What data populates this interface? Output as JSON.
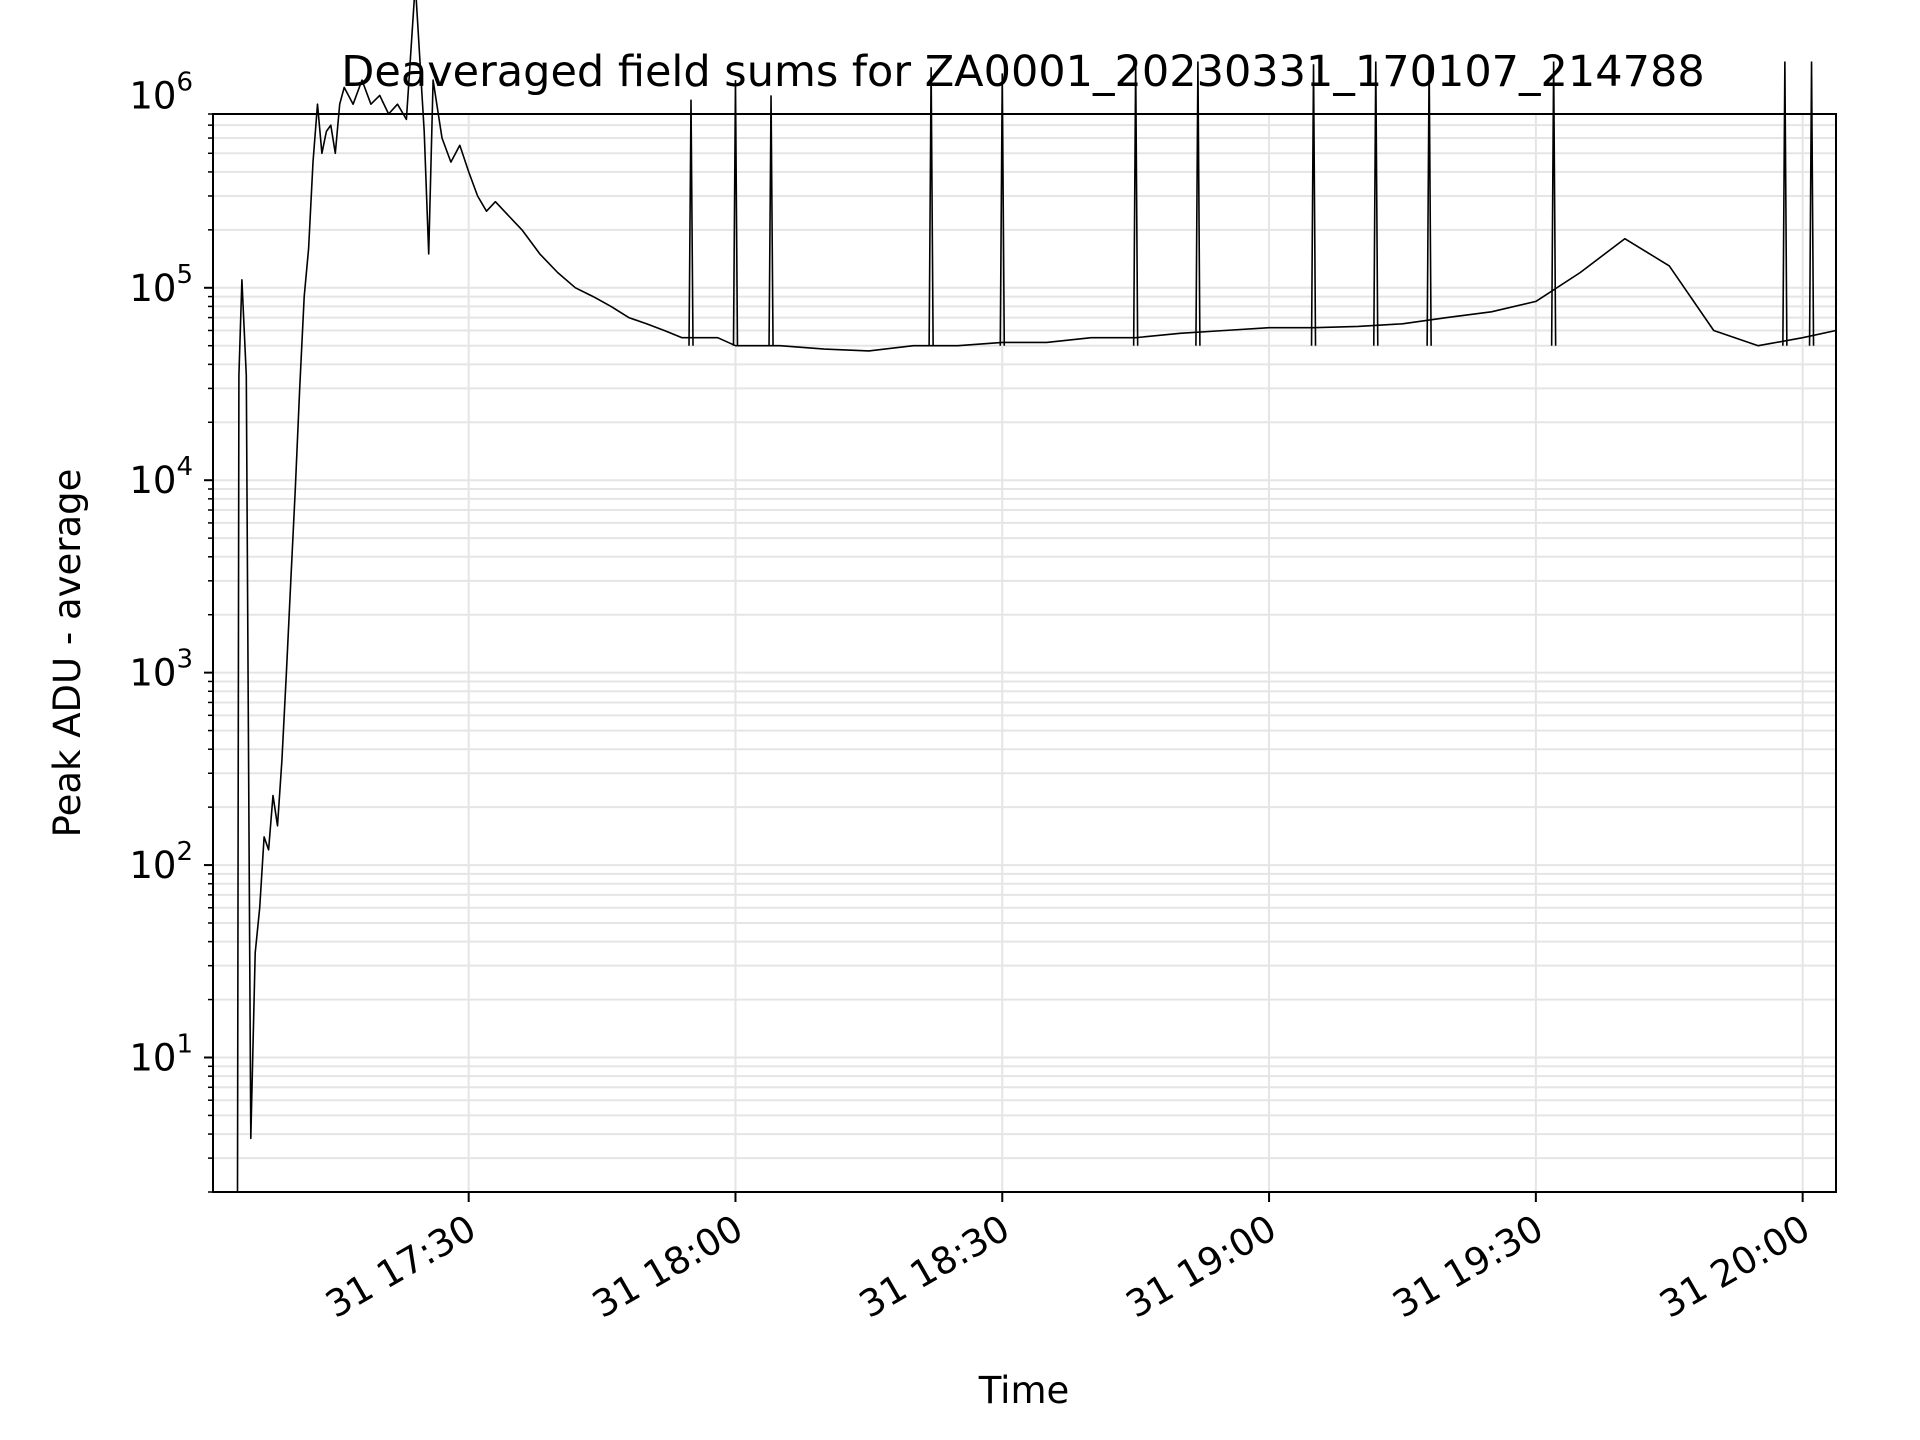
{
  "chart_data": {
    "type": "line",
    "title": "Deaveraged field sums for ZA0001_20230331_170107_214788",
    "xlabel": "Time",
    "ylabel": "Peak ADU - average",
    "yscale": "log",
    "ylim": [
      2,
      800000
    ],
    "xlim": [
      "2023-03-31 17:01:15",
      "2023-03-31 20:03:45"
    ],
    "x_ticks": [
      "31 17:30",
      "31 18:00",
      "31 18:30",
      "31 19:00",
      "31 19:30",
      "31 20:00"
    ],
    "y_ticks": [
      {
        "base": "10",
        "exp": "1"
      },
      {
        "base": "10",
        "exp": "2"
      },
      {
        "base": "10",
        "exp": "3"
      },
      {
        "base": "10",
        "exp": "4"
      },
      {
        "base": "10",
        "exp": "5"
      },
      {
        "base": "10",
        "exp": "6"
      }
    ],
    "grid": true,
    "line_color": "#000000",
    "grid_color": "#e5e5e5",
    "series": [
      {
        "x": [
          "2023-03-31 17:04:00",
          "2023-03-31 17:04:10",
          "2023-03-31 17:04:30",
          "2023-03-31 17:05:00",
          "2023-03-31 17:05:30",
          "2023-03-31 17:06:00",
          "2023-03-31 17:06:30",
          "2023-03-31 17:07:00",
          "2023-03-31 17:07:30",
          "2023-03-31 17:08:00",
          "2023-03-31 17:08:30",
          "2023-03-31 17:09:00",
          "2023-03-31 17:09:30",
          "2023-03-31 17:10:00",
          "2023-03-31 17:10:30",
          "2023-03-31 17:11:00",
          "2023-03-31 17:11:30",
          "2023-03-31 17:12:00",
          "2023-03-31 17:12:30",
          "2023-03-31 17:13:00",
          "2023-03-31 17:13:30",
          "2023-03-31 17:14:00",
          "2023-03-31 17:14:30",
          "2023-03-31 17:15:00",
          "2023-03-31 17:15:30",
          "2023-03-31 17:16:00",
          "2023-03-31 17:17:00",
          "2023-03-31 17:18:00",
          "2023-03-31 17:19:00",
          "2023-03-31 17:20:00",
          "2023-03-31 17:21:00",
          "2023-03-31 17:22:00",
          "2023-03-31 17:23:00",
          "2023-03-31 17:24:00",
          "2023-03-31 17:25:00",
          "2023-03-31 17:25:30",
          "2023-03-31 17:26:00",
          "2023-03-31 17:27:00",
          "2023-03-31 17:28:00",
          "2023-03-31 17:29:00",
          "2023-03-31 17:30:00",
          "2023-03-31 17:31:00",
          "2023-03-31 17:32:00",
          "2023-03-31 17:33:00",
          "2023-03-31 17:34:00",
          "2023-03-31 17:36:00",
          "2023-03-31 17:38:00",
          "2023-03-31 17:40:00",
          "2023-03-31 17:42:00",
          "2023-03-31 17:44:00",
          "2023-03-31 17:46:00",
          "2023-03-31 17:48:00",
          "2023-03-31 17:50:00",
          "2023-03-31 17:52:00",
          "2023-03-31 17:54:00",
          "2023-03-31 17:56:00",
          "2023-03-31 17:58:00",
          "2023-03-31 18:00:00",
          "2023-03-31 18:05:00",
          "2023-03-31 18:10:00",
          "2023-03-31 18:15:00",
          "2023-03-31 18:20:00",
          "2023-03-31 18:25:00",
          "2023-03-31 18:30:00",
          "2023-03-31 18:35:00",
          "2023-03-31 18:40:00",
          "2023-03-31 18:45:00",
          "2023-03-31 18:50:00",
          "2023-03-31 18:55:00",
          "2023-03-31 19:00:00",
          "2023-03-31 19:05:00",
          "2023-03-31 19:10:00",
          "2023-03-31 19:15:00",
          "2023-03-31 19:20:00",
          "2023-03-31 19:25:00",
          "2023-03-31 19:30:00",
          "2023-03-31 19:35:00",
          "2023-03-31 19:40:00",
          "2023-03-31 19:45:00",
          "2023-03-31 19:50:00",
          "2023-03-31 19:55:00",
          "2023-03-31 20:00:00",
          "2023-03-31 20:03:45"
        ],
        "y": [
          2,
          35000,
          110000,
          35000,
          3.8,
          35,
          60,
          140,
          120,
          230,
          160,
          350,
          1000,
          3000,
          9000,
          30000,
          90000,
          160000,
          450000,
          900000,
          500000,
          650000,
          700000,
          500000,
          900000,
          1100000,
          900000,
          1200000,
          900000,
          1000000,
          800000,
          900000,
          750000,
          3800000,
          650000,
          150000,
          1200000,
          600000,
          450000,
          550000,
          400000,
          300000,
          250000,
          280000,
          250000,
          200000,
          150000,
          120000,
          100000,
          90000,
          80000,
          70000,
          65000,
          60000,
          55000,
          55000,
          55000,
          50000,
          50000,
          48000,
          47000,
          50000,
          50000,
          52000,
          52000,
          55000,
          55000,
          58000,
          60000,
          62000,
          62000,
          63000,
          65000,
          70000,
          75000,
          85000,
          120000,
          180000,
          130000,
          60000,
          50000,
          55000,
          60000
        ]
      }
    ],
    "spikes": [
      {
        "x": "2023-03-31 17:55:00",
        "y": 950000
      },
      {
        "x": "2023-03-31 18:00:00",
        "y": 1200000
      },
      {
        "x": "2023-03-31 18:04:00",
        "y": 1000000
      },
      {
        "x": "2023-03-31 18:22:00",
        "y": 1400000
      },
      {
        "x": "2023-03-31 18:30:00",
        "y": 1300000
      },
      {
        "x": "2023-03-31 18:45:00",
        "y": 1500000
      },
      {
        "x": "2023-03-31 18:52:00",
        "y": 1500000
      },
      {
        "x": "2023-03-31 19:05:00",
        "y": 1450000
      },
      {
        "x": "2023-03-31 19:12:00",
        "y": 1500000
      },
      {
        "x": "2023-03-31 19:18:00",
        "y": 1500000
      },
      {
        "x": "2023-03-31 19:32:00",
        "y": 1500000
      },
      {
        "x": "2023-03-31 19:58:00",
        "y": 1500000
      },
      {
        "x": "2023-03-31 20:01:00",
        "y": 1500000
      }
    ]
  }
}
